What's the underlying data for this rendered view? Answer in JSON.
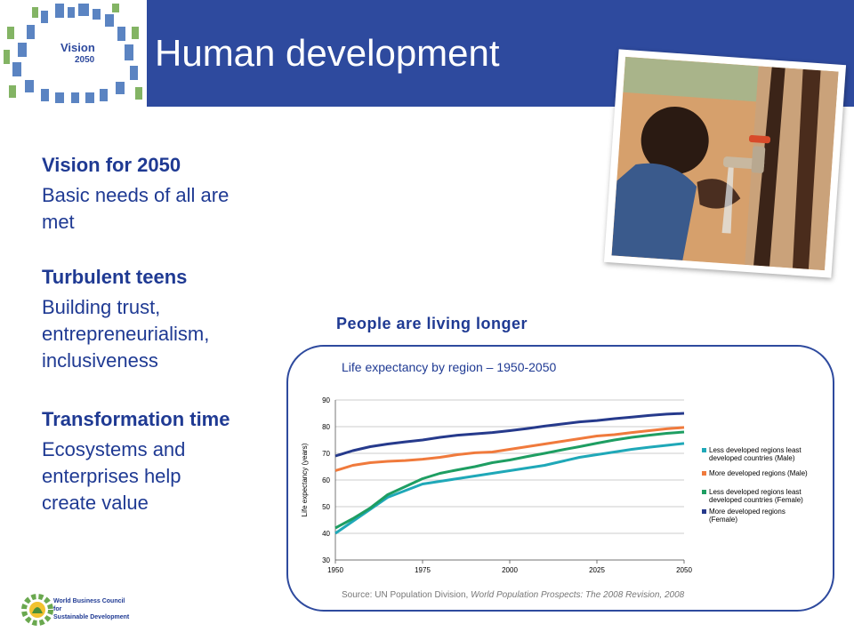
{
  "slide": {
    "title": "Human development",
    "logo_line1": "Vision",
    "logo_line2": "2050"
  },
  "sections": [
    {
      "heading": "Vision for 2050",
      "body_lines": [
        "Basic needs of all are",
        "met"
      ]
    },
    {
      "heading": "Turbulent teens",
      "body_lines": [
        "Building trust,",
        "entrepreneurialism,",
        "inclusiveness"
      ]
    },
    {
      "heading": "Transformation time",
      "body_lines": [
        "Ecosystems and",
        "enterprises help",
        "create value"
      ]
    }
  ],
  "chart_heading": "People are living longer",
  "chart_subtitle": "Life expectancy by region – 1950-2050",
  "source": {
    "prefix": "Source: UN Population Division, ",
    "italic": "World Population Prospects: The 2008 Revision, 2008"
  },
  "footer_logo": {
    "line1": "World Business Council for",
    "line2": "Sustainable Development"
  },
  "colors": {
    "brand_blue": "#2e4a9e",
    "text_blue": "#1f3a93"
  },
  "chart_data": {
    "type": "line",
    "title": "Life expectancy by region – 1950-2050",
    "xlabel": "",
    "ylabel": "Life expectancy (years)",
    "xlim": [
      1950,
      2050
    ],
    "ylim": [
      30,
      90
    ],
    "x_ticks": [
      1950,
      1975,
      2000,
      2025,
      2050
    ],
    "y_ticks": [
      30,
      40,
      50,
      60,
      70,
      80,
      90
    ],
    "grid": true,
    "legend_position": "right",
    "x": [
      1950,
      1955,
      1960,
      1965,
      1970,
      1975,
      1980,
      1985,
      1990,
      1995,
      2000,
      2005,
      2010,
      2015,
      2020,
      2025,
      2030,
      2035,
      2040,
      2045,
      2050
    ],
    "series": [
      {
        "name": "Less developed regions least developed countries (Male)",
        "color": "#1fa8b8",
        "values": [
          40,
          44.5,
          49,
          53.5,
          56,
          58.5,
          59.5,
          60.5,
          61.5,
          62.5,
          63.5,
          64.5,
          65.5,
          67,
          68.5,
          69.5,
          70.5,
          71.5,
          72.3,
          73,
          73.7
        ]
      },
      {
        "name": "More developed regions (Male)",
        "color": "#f07a3c",
        "values": [
          63.5,
          65.5,
          66.5,
          67,
          67.3,
          67.8,
          68.5,
          69.5,
          70.2,
          70.5,
          71.5,
          72.5,
          73.5,
          74.5,
          75.5,
          76.5,
          77,
          77.8,
          78.5,
          79.2,
          79.7
        ]
      },
      {
        "name": "Less developed regions least developed countries (Female)",
        "color": "#1e9e62",
        "values": [
          42,
          45.5,
          49.5,
          54.5,
          57.5,
          60.5,
          62.5,
          63.8,
          65,
          66.5,
          67.5,
          68.8,
          70,
          71.3,
          72.5,
          73.8,
          75,
          76,
          76.8,
          77.5,
          78
        ]
      },
      {
        "name": "More developed regions (Female)",
        "color": "#263a8c",
        "values": [
          69,
          71,
          72.5,
          73.5,
          74.3,
          75,
          76,
          76.8,
          77.3,
          77.8,
          78.5,
          79.3,
          80.2,
          81,
          81.8,
          82.3,
          83,
          83.6,
          84.2,
          84.7,
          85
        ]
      }
    ]
  }
}
